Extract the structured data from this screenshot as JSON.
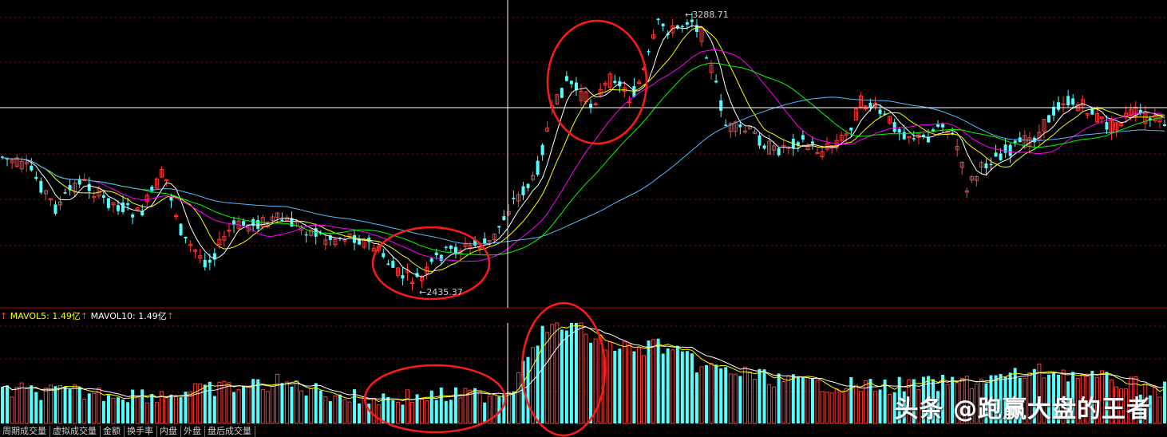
{
  "chart_data": {
    "type": "candlestick",
    "annotations": {
      "high": "3288.71",
      "low": "2435.37"
    },
    "ma_colors": [
      "#ffffff",
      "#ffff00",
      "#ff00ff",
      "#00ff00",
      "#55bbff"
    ],
    "volume_indicator": {
      "label1": "MAVOL5:",
      "value1": "1.49亿",
      "label2": "MAVOL10:",
      "value2": "1.49亿",
      "arrow": "↑"
    },
    "price_max": 3288.71,
    "price_min": 2435.37,
    "colors": {
      "up": "#ff3b3b",
      "down": "#54ffff",
      "grid": "#8a0000",
      "crosshair": "#ffffff",
      "circle": "#ff1a1a"
    }
  },
  "tabs": [
    "周期成交量",
    "虚拟成交量",
    "金额",
    "换手率",
    "内盘",
    "外盘",
    "盘后成交量"
  ],
  "watermark": "头条 @跑赢大盘的王者"
}
